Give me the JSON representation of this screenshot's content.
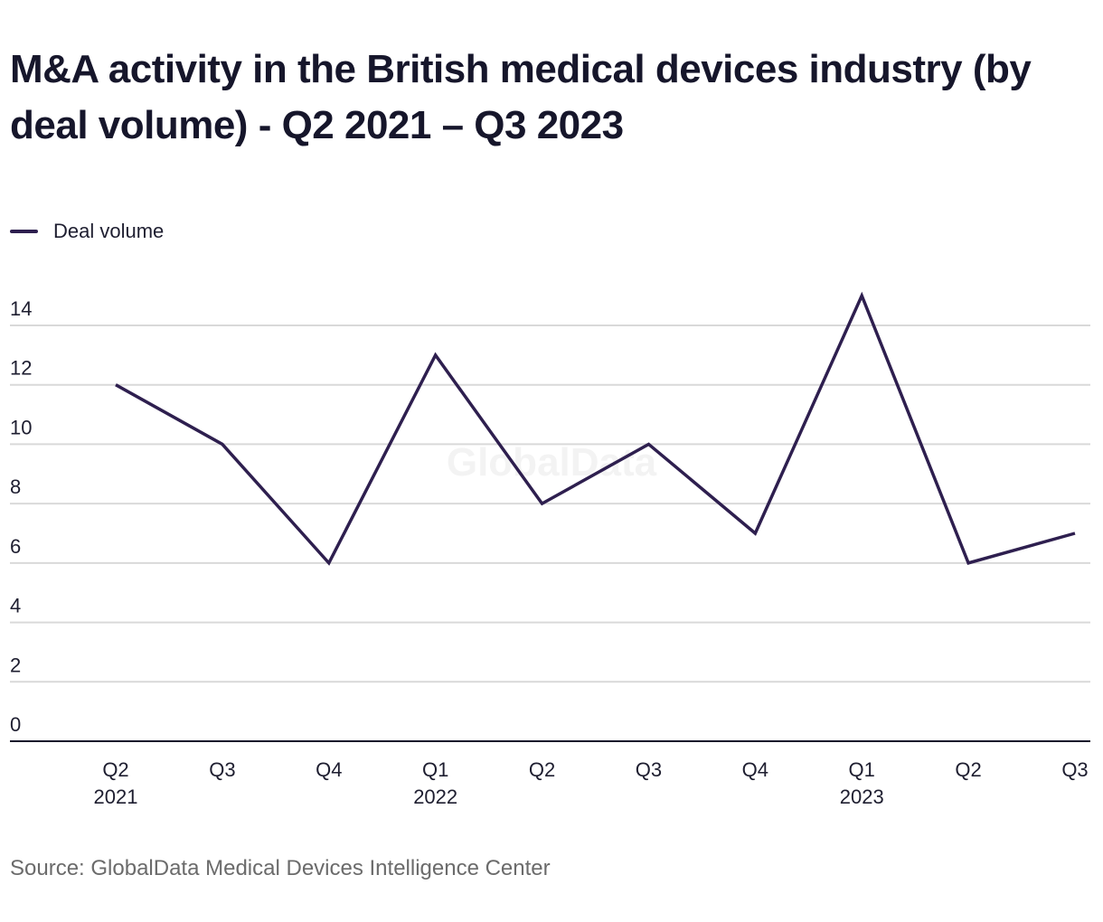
{
  "title": "M&A activity in the British medical devices industry (by deal volume) - Q2 2021 – Q3 2023",
  "legend": {
    "label": "Deal volume",
    "color": "#2e1f4f"
  },
  "watermark": "GlobalData",
  "source": "Source: GlobalData Medical Devices Intelligence Center",
  "chart_data": {
    "type": "line",
    "title": "M&A activity in the British medical devices industry (by deal volume) - Q2 2021 – Q3 2023",
    "xlabel": "",
    "ylabel": "",
    "categories": [
      "Q2 2021",
      "Q3 2021",
      "Q4 2021",
      "Q1 2022",
      "Q2 2022",
      "Q3 2022",
      "Q4 2022",
      "Q1 2023",
      "Q2 2023",
      "Q3 2023"
    ],
    "x_tick_labels": [
      [
        "Q2",
        "2021"
      ],
      [
        "Q3",
        ""
      ],
      [
        "Q4",
        ""
      ],
      [
        "Q1",
        "2022"
      ],
      [
        "Q2",
        ""
      ],
      [
        "Q3",
        ""
      ],
      [
        "Q4",
        ""
      ],
      [
        "Q1",
        "2023"
      ],
      [
        "Q2",
        ""
      ],
      [
        "Q3",
        ""
      ]
    ],
    "series": [
      {
        "name": "Deal volume",
        "color": "#2e1f4f",
        "values": [
          12,
          10,
          6,
          13,
          8,
          10,
          7,
          15,
          6,
          7
        ]
      }
    ],
    "y_ticks": [
      0,
      2,
      4,
      6,
      8,
      10,
      12,
      14
    ],
    "ylim": [
      0,
      14
    ],
    "grid": true,
    "legend_position": "top-left"
  }
}
